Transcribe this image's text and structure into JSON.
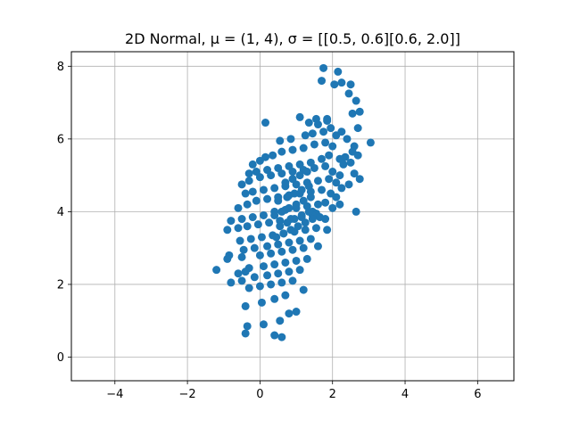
{
  "chart_data": {
    "type": "scatter",
    "title": "2D Normal, μ = (1, 4), σ = [[0.5, 0.6][0.6, 2.0]]",
    "xlabel": "",
    "ylabel": "",
    "xlim": [
      -5.2,
      7.0
    ],
    "ylim": [
      -0.65,
      8.4
    ],
    "xticks": [
      -4,
      -2,
      0,
      2,
      4,
      6
    ],
    "xtick_labels": [
      "−4",
      "−2",
      "0",
      "2",
      "4",
      "6"
    ],
    "yticks": [
      0,
      2,
      4,
      6,
      8
    ],
    "ytick_labels": [
      "0",
      "2",
      "4",
      "6",
      "8"
    ],
    "grid": true,
    "marker_color": "#1f77b4",
    "series": [
      {
        "x": [
          1.75,
          2.15,
          1.7,
          2.05,
          2.25,
          2.5,
          2.45,
          2.65,
          2.55,
          2.75,
          2.7,
          1.85,
          1.6,
          1.75,
          1.95,
          2.1,
          2.25,
          2.4,
          3.05,
          2.6,
          2.55,
          2.7,
          2.35,
          2.5,
          2.6,
          2.75,
          2.45,
          2.2,
          2.65,
          0.15,
          1.1,
          1.35,
          1.55,
          1.85,
          0.55,
          0.85,
          1.25,
          1.45,
          -0.2,
          0.0,
          0.15,
          0.35,
          0.6,
          0.9,
          1.2,
          1.5,
          1.8,
          2.0,
          -0.3,
          -0.1,
          0.2,
          0.5,
          0.8,
          1.1,
          1.4,
          1.7,
          1.9,
          2.2,
          2.3,
          -0.5,
          -0.3,
          0.0,
          0.3,
          0.6,
          0.9,
          1.2,
          1.5,
          1.8,
          2.0,
          2.2,
          -0.4,
          -0.2,
          0.1,
          0.4,
          0.7,
          1.0,
          1.3,
          1.6,
          1.9,
          2.1,
          2.25,
          -0.6,
          -0.35,
          -0.1,
          0.2,
          0.5,
          0.8,
          1.1,
          1.4,
          1.7,
          1.95,
          2.1,
          -0.8,
          -0.5,
          -0.2,
          0.1,
          0.4,
          0.7,
          1.0,
          1.3,
          1.6,
          1.8,
          2.0,
          1.45,
          1.55,
          1.65,
          -0.9,
          -0.6,
          -0.35,
          -0.05,
          0.25,
          0.55,
          0.85,
          1.15,
          1.45,
          1.8,
          -0.55,
          -0.25,
          0.05,
          0.35,
          0.65,
          0.95,
          1.25,
          1.55,
          1.85,
          -1.2,
          -0.85,
          -0.45,
          -0.15,
          0.2,
          0.5,
          0.8,
          1.1,
          1.4,
          -0.9,
          -0.5,
          0.0,
          0.3,
          0.6,
          0.9,
          1.2,
          1.6,
          -0.3,
          0.1,
          0.4,
          0.7,
          1.0,
          1.3,
          -0.6,
          -0.4,
          -0.15,
          0.2,
          0.5,
          0.8,
          1.1,
          -0.8,
          -0.5,
          -0.3,
          0.0,
          0.3,
          0.6,
          0.9,
          -0.4,
          0.05,
          0.4,
          0.7,
          -0.35,
          0.1,
          0.55,
          -0.4,
          0.4,
          0.6,
          0.8,
          1.0,
          1.2,
          0.45,
          0.65,
          0.85,
          1.05,
          1.25,
          1.45,
          0.5,
          0.75,
          0.95,
          1.15,
          1.35,
          0.4,
          0.6,
          0.8,
          1.0,
          1.2,
          1.4,
          0.55,
          0.75,
          0.95,
          1.15,
          1.35,
          0.7,
          0.9,
          1.1,
          1.3
        ],
        "y": [
          7.95,
          7.85,
          7.6,
          7.5,
          7.55,
          7.5,
          7.25,
          7.05,
          6.7,
          6.75,
          6.3,
          6.55,
          6.4,
          6.2,
          6.3,
          6.1,
          6.2,
          6.0,
          5.9,
          5.8,
          5.65,
          5.55,
          5.5,
          5.35,
          5.05,
          4.9,
          4.75,
          4.2,
          4.0,
          6.45,
          6.6,
          6.45,
          6.55,
          6.5,
          5.95,
          6.0,
          6.1,
          6.15,
          5.3,
          5.4,
          5.5,
          5.55,
          5.65,
          5.7,
          5.75,
          5.85,
          5.9,
          5.8,
          5.05,
          5.1,
          5.15,
          5.2,
          5.25,
          5.3,
          5.35,
          5.45,
          5.55,
          5.45,
          5.3,
          4.75,
          4.85,
          4.95,
          5.0,
          5.05,
          5.1,
          5.15,
          5.2,
          5.25,
          5.1,
          5.0,
          4.5,
          4.55,
          4.6,
          4.65,
          4.7,
          4.75,
          4.8,
          4.85,
          4.9,
          4.8,
          4.65,
          4.1,
          4.2,
          4.3,
          4.35,
          4.4,
          4.45,
          4.5,
          4.55,
          4.6,
          4.5,
          4.4,
          3.75,
          3.8,
          3.85,
          3.9,
          4.0,
          4.05,
          4.1,
          4.15,
          4.2,
          4.25,
          4.1,
          4.0,
          3.95,
          3.85,
          3.5,
          3.55,
          3.6,
          3.65,
          3.7,
          3.75,
          3.8,
          3.85,
          3.9,
          3.8,
          3.2,
          3.25,
          3.3,
          3.35,
          3.4,
          3.45,
          3.5,
          3.55,
          3.5,
          2.4,
          2.8,
          2.95,
          3.0,
          3.05,
          3.1,
          3.15,
          3.2,
          3.25,
          2.7,
          2.75,
          2.8,
          2.85,
          2.9,
          2.95,
          3.0,
          3.05,
          2.45,
          2.5,
          2.55,
          2.6,
          2.65,
          2.7,
          2.3,
          2.35,
          2.2,
          2.25,
          2.3,
          2.35,
          2.4,
          2.05,
          2.1,
          1.9,
          1.95,
          2.0,
          2.05,
          2.1,
          1.4,
          1.5,
          1.6,
          1.7,
          0.85,
          0.9,
          1.0,
          0.65,
          0.6,
          0.55,
          1.2,
          1.25,
          1.85,
          3.3,
          3.4,
          3.5,
          3.6,
          3.7,
          3.8,
          4.3,
          4.4,
          4.5,
          4.6,
          4.7,
          3.9,
          4.0,
          4.1,
          4.2,
          4.3,
          4.4,
          3.6,
          3.7,
          3.8,
          3.9,
          4.0,
          4.8,
          4.9,
          5.0,
          5.1
        ]
      }
    ]
  }
}
